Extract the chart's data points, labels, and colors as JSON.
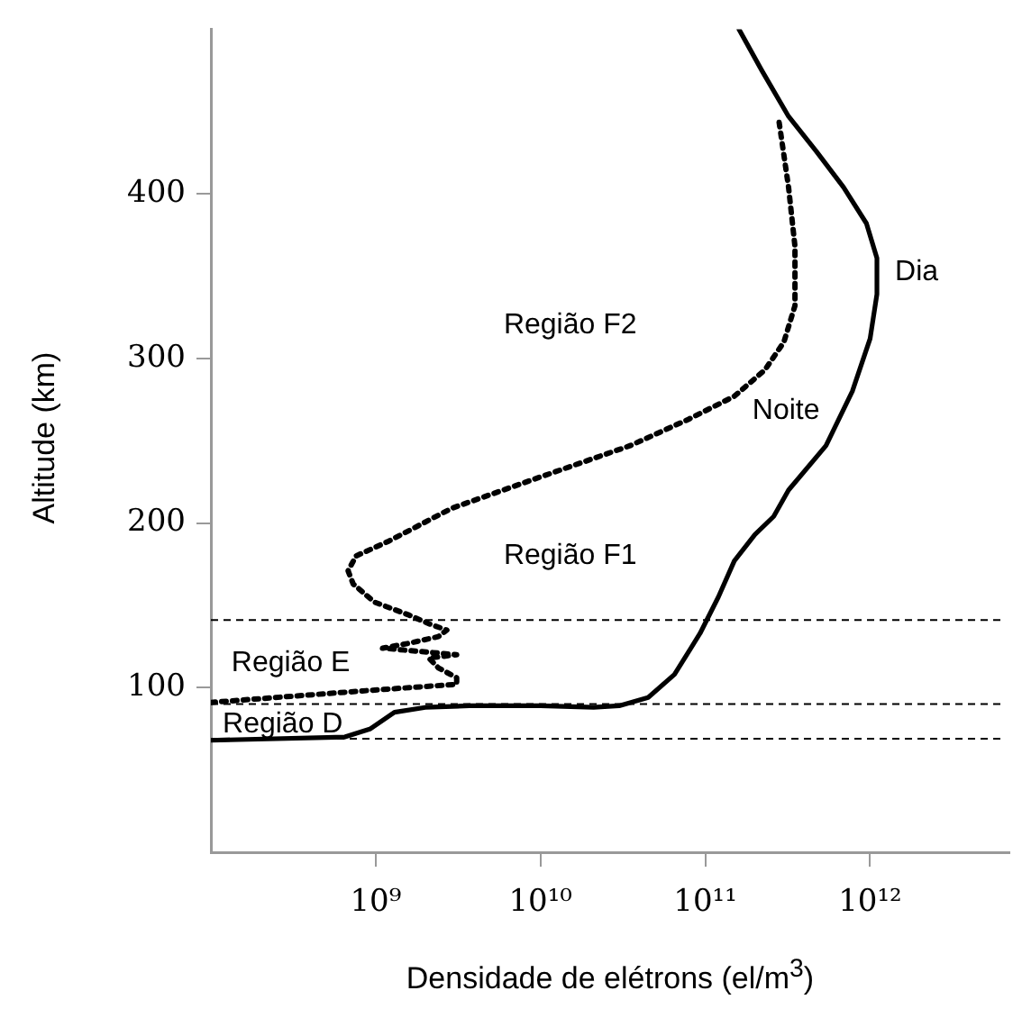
{
  "chart_data": {
    "type": "line",
    "xlabel": "Densidade de elétrons (el/m$^{3}$)",
    "ylabel": "Altitude (km)",
    "log": "x",
    "xlim": [
      100000000.0,
      7000000000000.0
    ],
    "xticks": [
      {
        "value": 1000000000.0,
        "label": "10⁹"
      },
      {
        "value": 10000000000.0,
        "label": "10¹⁰"
      },
      {
        "value": 100000000000.0,
        "label": "10¹¹"
      },
      {
        "value": 1000000000000.0,
        "label": "10¹²"
      }
    ],
    "ylim": [
      0,
      500
    ],
    "yticks": [
      100,
      200,
      300,
      400
    ],
    "grid": false,
    "legend": false,
    "marker": "none",
    "series": [
      {
        "name": "Noite",
        "color": "#000000",
        "line_style": "dotted",
        "x": [
          100000000.0,
          830000000.0,
          3100000000.0,
          3100000000.0,
          2400000000.0,
          2100000000.0,
          3100000000.0,
          1100000000.0,
          1600000000.0,
          2400000000.0,
          2700000000.0,
          2200000000.0,
          1600000000.0,
          980000000.0,
          730000000.0,
          680000000.0,
          760000000.0,
          1200000000.0,
          2900000000.0,
          10000000000.0,
          35000000000.0,
          79000000000.0,
          150000000000.0,
          230000000000.0,
          300000000000.0,
          350000000000.0,
          350000000000.0,
          320000000000.0,
          280000000000.0
        ],
        "values": [
          91,
          98,
          102,
          106,
          112,
          118,
          120,
          124,
          127,
          131,
          135,
          138,
          144,
          152,
          163,
          171,
          180,
          189,
          209,
          228,
          247,
          263,
          277,
          293,
          310,
          332,
          368,
          404,
          444
        ]
      },
      {
        "name": "Dia",
        "color": "#000000",
        "line_style": "solid",
        "x": [
          100000000.0,
          650000000.0,
          930000000.0,
          1300000000.0,
          2000000000.0,
          3700000000.0,
          10000000000.0,
          21000000000.0,
          30000000000.0,
          45000000000.0,
          65000000000.0,
          93000000000.0,
          120000000000.0,
          150000000000.0,
          200000000000.0,
          260000000000.0,
          320000000000.0,
          540000000000.0,
          780000000000.0,
          1000000000000.0,
          1100000000000.0,
          1100000000000.0,
          950000000000.0,
          690000000000.0,
          470000000000.0,
          320000000000.0,
          220000000000.0,
          160000000000.0
        ],
        "values": [
          68,
          70,
          75,
          85,
          88,
          89,
          89,
          88,
          89,
          94,
          108,
          133,
          155,
          177,
          193,
          204,
          220,
          247,
          280,
          312,
          339,
          361,
          382,
          404,
          426,
          447,
          475,
          500
        ]
      }
    ],
    "ref_lines": [
      {
        "axis": "y",
        "value": 141,
        "line_style": "dashed",
        "color": "#000000"
      },
      {
        "axis": "y",
        "value": 90,
        "line_style": "dashed",
        "color": "#000000"
      },
      {
        "axis": "y",
        "value": 69,
        "line_style": "dashed",
        "color": "#000000"
      }
    ],
    "annotations": [
      "Região F2",
      "Região F1",
      "Região E",
      "Região D"
    ]
  }
}
